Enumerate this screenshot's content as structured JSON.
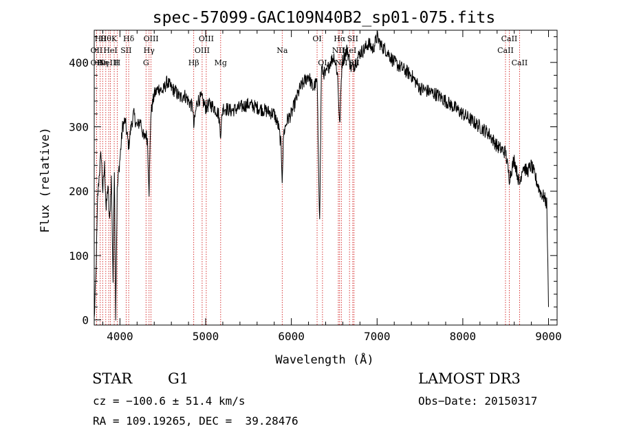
{
  "chart_data": {
    "type": "line",
    "title": "spec-57099-GAC109N40B2_sp01-075.fits",
    "xlabel": "Wavelength (Å)",
    "ylabel": "Flux (relative)",
    "xlim": [
      3700,
      9100
    ],
    "ylim": [
      -8,
      450
    ],
    "x_ticks": [
      4000,
      5000,
      6000,
      7000,
      8000,
      9000
    ],
    "y_ticks": [
      0,
      100,
      200,
      300,
      400
    ],
    "grid": false,
    "line_color": "#000000",
    "marker_color": "#cc0000",
    "series": [
      {
        "x": [
          3700,
          3720,
          3740,
          3760,
          3780,
          3800,
          3820,
          3840,
          3860,
          3880,
          3900,
          3920,
          3935,
          3950,
          3968,
          3985,
          4000,
          4030,
          4060,
          4080,
          4102,
          4130,
          4160,
          4200,
          4240,
          4280,
          4300,
          4320,
          4340,
          4360,
          4400,
          4450,
          4500,
          4550,
          4600,
          4650,
          4700,
          4750,
          4800,
          4850,
          4861,
          4900,
          4950,
          5000,
          5050,
          5100,
          5150,
          5175,
          5200,
          5300,
          5400,
          5500,
          5600,
          5700,
          5800,
          5850,
          5880,
          5893,
          5910,
          5950,
          6000,
          6050,
          6100,
          6150,
          6200,
          6250,
          6300,
          6330,
          6350,
          6400,
          6450,
          6500,
          6540,
          6563,
          6590,
          6620,
          6650,
          6700,
          6750,
          6800,
          6850,
          6900,
          6950,
          7000,
          7050,
          7100,
          7150,
          7200,
          7300,
          7400,
          7500,
          7600,
          7700,
          7800,
          7900,
          8000,
          8100,
          8200,
          8300,
          8400,
          8500,
          8542,
          8600,
          8662,
          8700,
          8750,
          8800,
          8850,
          8900,
          8950,
          8980,
          9000
        ],
        "y": [
          0,
          70,
          190,
          230,
          260,
          200,
          240,
          170,
          210,
          150,
          220,
          60,
          240,
          10,
          200,
          230,
          250,
          300,
          310,
          290,
          270,
          300,
          320,
          300,
          310,
          280,
          290,
          280,
          200,
          320,
          350,
          360,
          355,
          370,
          360,
          355,
          345,
          350,
          340,
          330,
          300,
          340,
          345,
          330,
          335,
          330,
          320,
          290,
          330,
          325,
          330,
          335,
          330,
          325,
          320,
          300,
          270,
          220,
          290,
          310,
          320,
          340,
          360,
          370,
          380,
          360,
          370,
          150,
          390,
          380,
          400,
          410,
          380,
          300,
          400,
          410,
          420,
          390,
          400,
          415,
          420,
          430,
          420,
          440,
          425,
          420,
          410,
          400,
          390,
          380,
          360,
          355,
          350,
          340,
          330,
          320,
          310,
          300,
          290,
          270,
          260,
          220,
          250,
          210,
          240,
          230,
          240,
          220,
          200,
          190,
          180,
          20
        ]
      }
    ],
    "line_markers": [
      {
        "x": 3727,
        "label": "OII",
        "row": 1
      },
      {
        "x": 3727,
        "label": "OII",
        "row": 2
      },
      {
        "x": 3770,
        "label": "Hθ",
        "row": 0
      },
      {
        "x": 3798,
        "label": "Hη",
        "row": 2
      },
      {
        "x": 3835,
        "label": "Hθ",
        "row": 0
      },
      {
        "x": 3869,
        "label": "NeIII",
        "row": 2
      },
      {
        "x": 3889,
        "label": "HeI",
        "row": 1
      },
      {
        "x": 3933,
        "label": "K",
        "row": 0
      },
      {
        "x": 3968,
        "label": "H",
        "row": 2
      },
      {
        "x": 4072,
        "label": "SII",
        "row": 1
      },
      {
        "x": 4102,
        "label": "Hδ",
        "row": 0
      },
      {
        "x": 4304,
        "label": "G",
        "row": 2
      },
      {
        "x": 4340,
        "label": "Hγ",
        "row": 1
      },
      {
        "x": 4363,
        "label": "OIII",
        "row": 0
      },
      {
        "x": 4861,
        "label": "Hβ",
        "row": 2
      },
      {
        "x": 4959,
        "label": "OIII",
        "row": 1
      },
      {
        "x": 5007,
        "label": "OIII",
        "row": 0
      },
      {
        "x": 5175,
        "label": "Mg",
        "row": 2
      },
      {
        "x": 5893,
        "label": "Na",
        "row": 1
      },
      {
        "x": 6300,
        "label": "OI",
        "row": 0
      },
      {
        "x": 6363,
        "label": "OI",
        "row": 2
      },
      {
        "x": 6548,
        "label": "NII",
        "row": 1
      },
      {
        "x": 6563,
        "label": "Hα",
        "row": 0
      },
      {
        "x": 6583,
        "label": "NII",
        "row": 2
      },
      {
        "x": 6678,
        "label": "HeI",
        "row": 1
      },
      {
        "x": 6716,
        "label": "SII",
        "row": 0
      },
      {
        "x": 6731,
        "label": "SII",
        "row": 2
      },
      {
        "x": 8498,
        "label": "CaII",
        "row": 1
      },
      {
        "x": 8542,
        "label": "CaII",
        "row": 0
      },
      {
        "x": 8662,
        "label": "CaII",
        "row": 2
      }
    ]
  },
  "info": {
    "object_class": "STAR",
    "subclass": "G1",
    "survey": "LAMOST DR3",
    "cz": "cz = −100.6 ± 51.4 km/s",
    "obs_date": "Obs−Date: 20150317",
    "coords": "RA = 109.19265, DEC =  39.28476"
  }
}
